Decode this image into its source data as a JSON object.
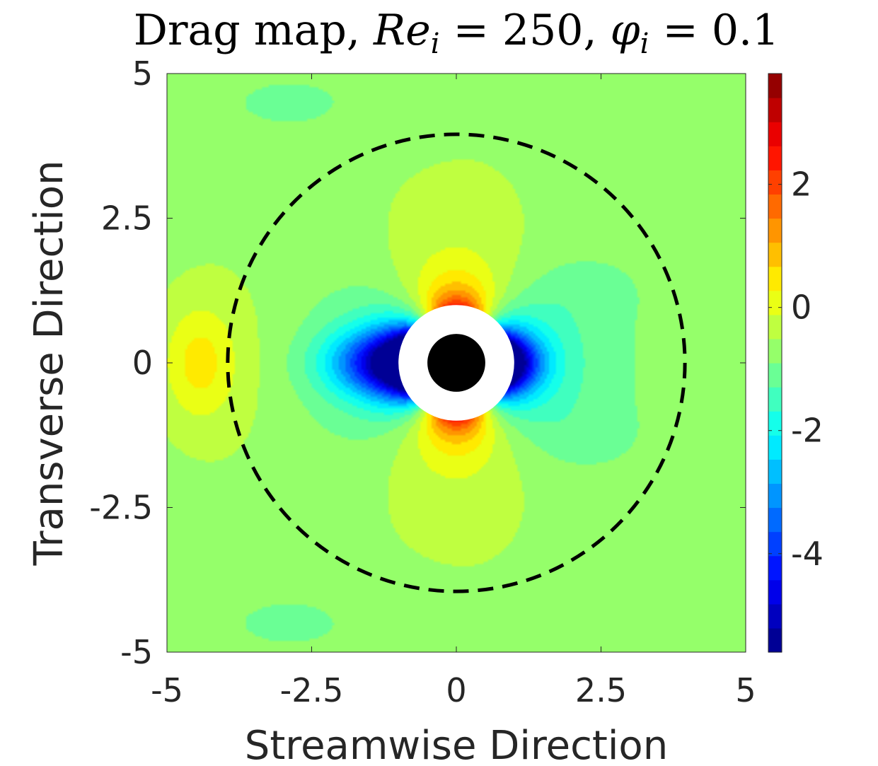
{
  "chart_data": {
    "type": "heatmap",
    "title": {
      "prefix": "Drag map, ",
      "re_symbol": "Re",
      "re_subscript": "i",
      "re_value": " = 250, ",
      "phi_symbol": "φ",
      "phi_subscript": "i",
      "phi_value": " = 0.1"
    },
    "xlabel": "Streamwise Direction",
    "ylabel": "Transverse Direction",
    "xlim": [
      -5,
      5
    ],
    "ylim": [
      -5,
      5
    ],
    "xticks": [
      -5,
      -2.5,
      0,
      2.5,
      5
    ],
    "yticks": [
      -5,
      -2.5,
      0,
      2.5,
      5
    ],
    "xtick_labels": [
      "-5",
      "-2.5",
      "0",
      "2.5",
      "5"
    ],
    "ytick_labels": [
      "-5",
      "-2.5",
      "0",
      "2.5",
      "5"
    ],
    "colorbar": {
      "range": [
        -5.6,
        3.8
      ],
      "ticks": [
        -4,
        -2,
        0,
        2
      ],
      "tick_labels": [
        "-4",
        "-2",
        "0",
        "2"
      ],
      "colormap": "jet",
      "levels": 24
    },
    "particle_radius": 0.5,
    "excluded_radius": 1.0,
    "dashed_circle_radius": 3.95,
    "background_color": "#ffffff",
    "particle_color": "#000000"
  }
}
